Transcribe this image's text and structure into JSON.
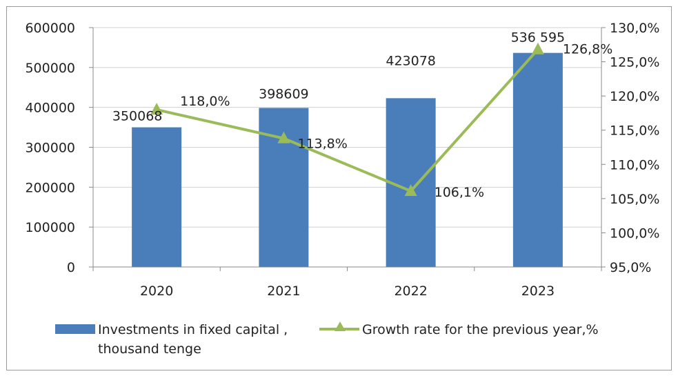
{
  "chart_data": {
    "type": "bar",
    "categories": [
      "2020",
      "2021",
      "2022",
      "2023"
    ],
    "series": [
      {
        "name": "Investments in fixed capital , thousand tenge",
        "type": "bar",
        "axis": "left",
        "color": "#4a7ebb",
        "values": [
          350068,
          398609,
          423078,
          536595
        ],
        "labels": [
          "350068",
          "398609",
          "423078",
          "536 595"
        ]
      },
      {
        "name": "Growth rate for the previous year,%",
        "type": "line",
        "axis": "right",
        "color": "#9bbb59",
        "marker": "triangle",
        "values": [
          118.0,
          113.8,
          106.1,
          126.8
        ],
        "labels": [
          "118,0%",
          "113,8%",
          "106,1%",
          "126,8%"
        ]
      }
    ],
    "y_left": {
      "ylim": [
        0,
        600000
      ],
      "ticks": [
        0,
        100000,
        200000,
        300000,
        400000,
        500000,
        600000
      ],
      "tick_labels": [
        "0",
        "100000",
        "200000",
        "300000",
        "400000",
        "500000",
        "600000"
      ]
    },
    "y_right": {
      "ylim": [
        95,
        130
      ],
      "ticks": [
        95,
        100,
        105,
        110,
        115,
        120,
        125,
        130
      ],
      "tick_labels": [
        "95,0%",
        "100,0%",
        "105,0%",
        "110,0%",
        "115,0%",
        "120,0%",
        "125,0%",
        "130,0%"
      ]
    },
    "grid": "horizontal",
    "legend_position": "bottom",
    "title": "",
    "xlabel": "",
    "ylabel": ""
  },
  "legend": {
    "bar_label_line1": "Investments in fixed capital ,",
    "bar_label_line2": "thousand tenge",
    "line_label": "Growth rate for the previous year,%"
  }
}
